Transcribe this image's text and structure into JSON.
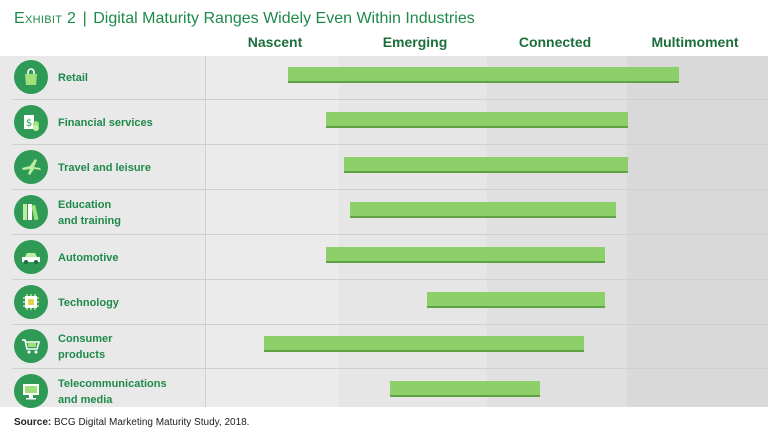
{
  "title": {
    "exhibit": "Exhibit 2",
    "separator": "|",
    "text": "Digital Maturity Ranges Widely Even Within Industries"
  },
  "source": {
    "label": "Source:",
    "text": "BCG Digital Marketing Maturity Study, 2018."
  },
  "chart_data": {
    "type": "range-bar",
    "title": "Digital Maturity Ranges Widely Even Within Industries",
    "stages": [
      "Nascent",
      "Emerging",
      "Connected",
      "Multimoment"
    ],
    "scale_note": "stage scale 0 (start of Nascent) to 4 (end of Multimoment)",
    "xlim": [
      0,
      4
    ],
    "rows": [
      {
        "label": [
          "Retail"
        ],
        "icon": "shopping-bag-icon",
        "start": 0.58,
        "end": 3.37
      },
      {
        "label": [
          "Financial services"
        ],
        "icon": "money-icon",
        "start": 0.85,
        "end": 3.01
      },
      {
        "label": [
          "Travel and leisure"
        ],
        "icon": "airplane-icon",
        "start": 0.98,
        "end": 3.01
      },
      {
        "label": [
          "Education",
          "and training"
        ],
        "icon": "books-icon",
        "start": 1.02,
        "end": 2.92
      },
      {
        "label": [
          "Automotive"
        ],
        "icon": "car-icon",
        "start": 0.85,
        "end": 2.84
      },
      {
        "label": [
          "Technology"
        ],
        "icon": "chip-icon",
        "start": 1.57,
        "end": 2.84
      },
      {
        "label": [
          "Consumer",
          "products"
        ],
        "icon": "shopping-cart-icon",
        "start": 0.41,
        "end": 2.69
      },
      {
        "label": [
          "Telecommunications",
          "and media"
        ],
        "icon": "monitor-icon",
        "start": 1.31,
        "end": 2.38
      }
    ]
  }
}
